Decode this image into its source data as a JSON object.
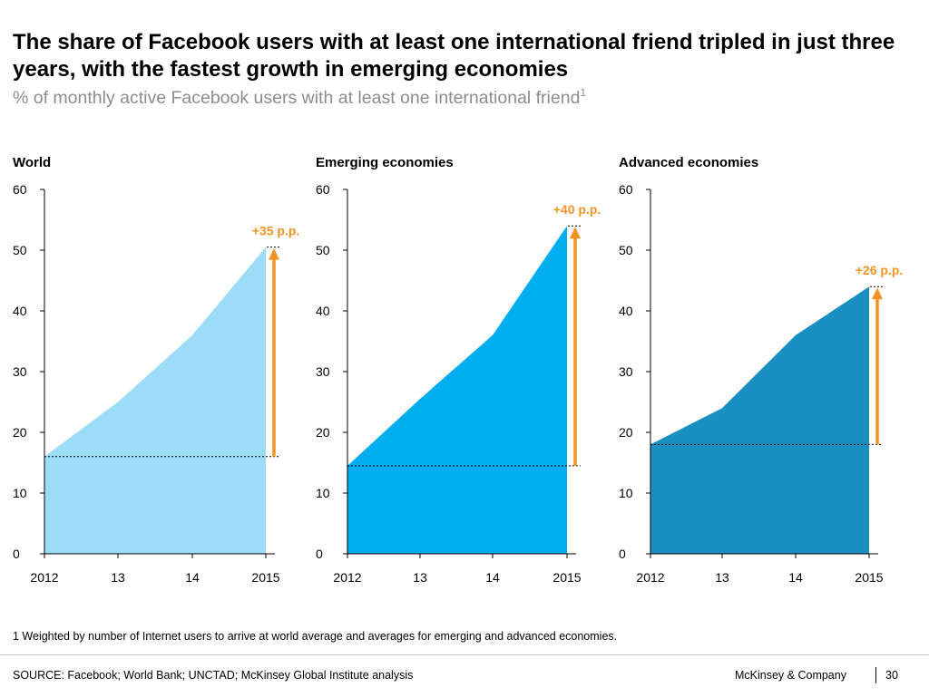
{
  "title": "The share of Facebook users with at least one international friend tripled in just three years, with the fastest growth in emerging economies",
  "subtitle": "% of monthly active Facebook users with at least one international friend",
  "subtitle_sup": "1",
  "footnote": "1 Weighted by number of Internet users to arrive at world average and averages for emerging and advanced economies.",
  "source": "SOURCE: Facebook; World Bank; UNCTAD; McKinsey Global Institute analysis",
  "company": "McKinsey & Company",
  "page_number": "30",
  "colors": {
    "world": "#9ddcf7",
    "emerging": "#00aeef",
    "advanced": "#1a8fc1",
    "annotation": "#f39325"
  },
  "chart_data": [
    {
      "type": "area",
      "title": "World",
      "x": [
        "2012",
        "13",
        "14",
        "2015"
      ],
      "values": [
        16,
        25,
        36,
        50.5
      ],
      "ylim": [
        0,
        60
      ],
      "yticks": [
        0,
        10,
        20,
        30,
        40,
        50,
        60
      ],
      "annotation": "+35 p.p.",
      "color": "#9ddcf7"
    },
    {
      "type": "area",
      "title": "Emerging economies",
      "x": [
        "2012",
        "13",
        "14",
        "2015"
      ],
      "values": [
        14.5,
        25.5,
        36,
        54
      ],
      "ylim": [
        0,
        60
      ],
      "yticks": [
        0,
        10,
        20,
        30,
        40,
        50,
        60
      ],
      "annotation": "+40 p.p.",
      "color": "#00aeef"
    },
    {
      "type": "area",
      "title": "Advanced economies",
      "x": [
        "2012",
        "13",
        "14",
        "2015"
      ],
      "values": [
        18,
        24,
        36,
        44
      ],
      "ylim": [
        0,
        60
      ],
      "yticks": [
        0,
        10,
        20,
        30,
        40,
        50,
        60
      ],
      "annotation": "+26 p.p.",
      "color": "#1a8fc1"
    }
  ]
}
